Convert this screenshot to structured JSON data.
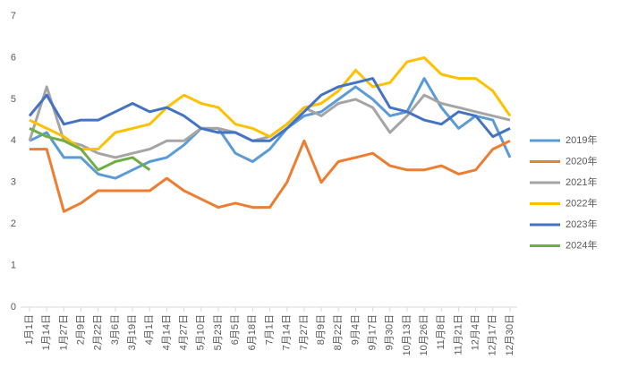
{
  "chart_data": {
    "type": "line",
    "categories": [
      "1月1日",
      "1月14日",
      "1月27日",
      "2月9日",
      "2月22日",
      "3月6日",
      "3月19日",
      "4月1日",
      "4月14日",
      "4月27日",
      "5月10日",
      "5月23日",
      "6月5日",
      "6月18日",
      "7月1日",
      "7月14日",
      "7月27日",
      "8月9日",
      "8月22日",
      "9月4日",
      "9月17日",
      "9月30日",
      "10月13日",
      "10月26日",
      "11月8日",
      "11月21日",
      "12月4日",
      "12月17日",
      "12月30日"
    ],
    "series": [
      {
        "name": "2019年",
        "color": "#5b9bd5",
        "values": [
          4.0,
          4.2,
          3.6,
          3.6,
          3.2,
          3.1,
          3.3,
          3.5,
          3.6,
          3.9,
          4.3,
          4.3,
          3.7,
          3.5,
          3.8,
          4.3,
          4.6,
          4.7,
          5.0,
          5.3,
          5.0,
          4.6,
          4.7,
          5.5,
          4.8,
          4.3,
          4.6,
          4.5,
          3.6
        ]
      },
      {
        "name": "2020年",
        "color": "#ed7d31",
        "values": [
          3.8,
          3.8,
          2.3,
          2.5,
          2.8,
          2.8,
          2.8,
          2.8,
          3.1,
          2.8,
          2.6,
          2.4,
          2.5,
          2.4,
          2.4,
          3.0,
          4.0,
          3.0,
          3.5,
          3.6,
          3.7,
          3.4,
          3.3,
          3.3,
          3.4,
          3.2,
          3.3,
          3.8,
          4.0
        ]
      },
      {
        "name": "2021年",
        "color": "#a5a5a5",
        "values": [
          4.0,
          5.3,
          4.0,
          3.9,
          3.7,
          3.6,
          3.7,
          3.8,
          4.0,
          4.0,
          4.3,
          4.3,
          4.2,
          4.0,
          4.1,
          4.4,
          4.8,
          4.6,
          4.9,
          5.0,
          4.8,
          4.2,
          4.6,
          5.1,
          4.9,
          4.8,
          4.7,
          4.6,
          4.5
        ]
      },
      {
        "name": "2022年",
        "color": "#ffc000",
        "values": [
          4.5,
          4.3,
          4.1,
          3.8,
          3.8,
          4.2,
          4.3,
          4.4,
          4.8,
          5.1,
          4.9,
          4.8,
          4.4,
          4.3,
          4.1,
          4.4,
          4.8,
          4.9,
          5.2,
          5.7,
          5.3,
          5.4,
          5.9,
          6.0,
          5.6,
          5.5,
          5.5,
          5.2,
          4.6
        ]
      },
      {
        "name": "2023年",
        "color": "#4472c4",
        "values": [
          4.6,
          5.1,
          4.4,
          4.5,
          4.5,
          4.7,
          4.9,
          4.7,
          4.8,
          4.6,
          4.3,
          4.2,
          4.2,
          4.0,
          4.0,
          4.3,
          4.7,
          5.1,
          5.3,
          5.4,
          5.5,
          4.8,
          4.7,
          4.5,
          4.4,
          4.7,
          4.6,
          4.1,
          4.3
        ]
      },
      {
        "name": "2024年",
        "color": "#70ad47",
        "values": [
          4.3,
          4.1,
          4.0,
          3.8,
          3.3,
          3.5,
          3.6,
          3.3,
          null,
          null,
          null,
          null,
          null,
          null,
          null,
          null,
          null,
          null,
          null,
          null,
          null,
          null,
          null,
          null,
          null,
          null,
          null,
          null,
          null
        ]
      }
    ],
    "ylim": [
      0,
      7
    ],
    "yticks": [
      0,
      1,
      2,
      3,
      4,
      5,
      6,
      7
    ],
    "grid": false,
    "legend": "right"
  }
}
